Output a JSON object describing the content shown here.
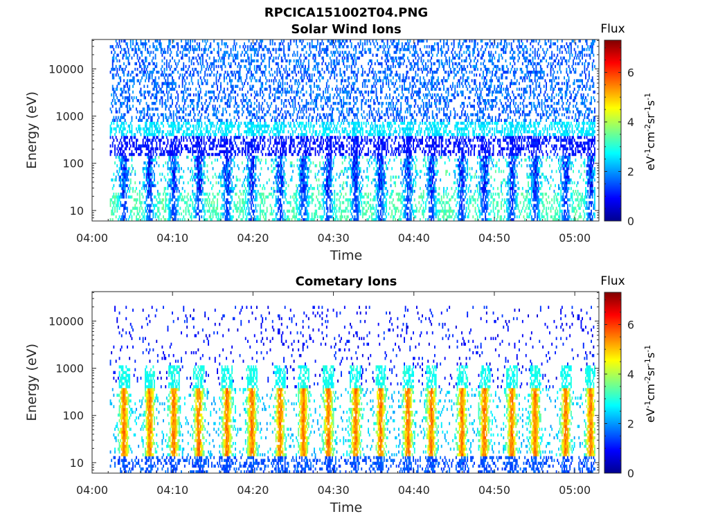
{
  "figure": {
    "filename_title": "RPCICA151002T04.PNG"
  },
  "chart_data": [
    {
      "type": "heatmap",
      "title": "Solar Wind Ions",
      "xlabel": "Time",
      "ylabel": "Energy (eV)",
      "x_ticks": [
        "04:00",
        "04:10",
        "04:20",
        "04:30",
        "04:40",
        "04:50",
        "05:00"
      ],
      "x_tick_minutes": [
        0,
        10,
        20,
        30,
        40,
        50,
        60
      ],
      "xlim_minutes": [
        0,
        63
      ],
      "data_x_range_minutes": [
        2.2,
        62.5
      ],
      "y_scale": "log",
      "ylim_eV": [
        6,
        42000
      ],
      "y_ticks": [
        10,
        100,
        1000,
        10000
      ],
      "y_tick_labels": [
        "10",
        "100",
        "1000",
        "10000"
      ],
      "colorbar": {
        "label": "Flux",
        "units": "eV-1cm-2sr-1s-1",
        "range": [
          0,
          7.3
        ],
        "ticks": [
          0,
          2,
          4,
          6
        ],
        "tick_labels": [
          "0",
          "2",
          "4",
          "6"
        ],
        "colormap": "jet"
      },
      "bursts_minutes": [
        3.9,
        7.1,
        10.1,
        13.2,
        16.7,
        19.8,
        23.3,
        26.2,
        29.3,
        32.7,
        35.8,
        39.2,
        42.1,
        45.9,
        48.7,
        52.1,
        55.0,
        58.8,
        61.9
      ],
      "bands": [
        {
          "energy_range_eV": [
            6,
            25
          ],
          "flux_level": 3.3
        },
        {
          "energy_range_eV": [
            25,
            400
          ],
          "flux_level": 1.3
        },
        {
          "energy_range_eV": [
            150,
            800
          ],
          "flux_level": 2.8
        },
        {
          "energy_range_eV": [
            800,
            40000
          ],
          "flux_level": 1.2
        }
      ],
      "grid": false,
      "legend": "colorbar-right"
    },
    {
      "type": "heatmap",
      "title": "Cometary Ions",
      "xlabel": "Time",
      "ylabel": "Energy (eV)",
      "x_ticks": [
        "04:00",
        "04:10",
        "04:20",
        "04:30",
        "04:40",
        "04:50",
        "05:00"
      ],
      "x_tick_minutes": [
        0,
        10,
        20,
        30,
        40,
        50,
        60
      ],
      "xlim_minutes": [
        0,
        63
      ],
      "data_x_range_minutes": [
        2.2,
        62.5
      ],
      "y_scale": "log",
      "ylim_eV": [
        6,
        42000
      ],
      "y_ticks": [
        10,
        100,
        1000,
        10000
      ],
      "y_tick_labels": [
        "10",
        "100",
        "1000",
        "10000"
      ],
      "colorbar": {
        "label": "Flux",
        "units": "eV-1cm-2sr-1s-1",
        "range": [
          0,
          7.3
        ],
        "ticks": [
          0,
          2,
          4,
          6
        ],
        "tick_labels": [
          "0",
          "2",
          "4",
          "6"
        ],
        "colormap": "jet"
      },
      "bursts_minutes": [
        3.9,
        7.1,
        10.1,
        13.2,
        16.7,
        19.8,
        23.3,
        26.2,
        29.3,
        32.7,
        35.8,
        39.2,
        42.1,
        45.9,
        48.7,
        52.1,
        55.0,
        58.8,
        61.9
      ],
      "bands": [
        {
          "energy_range_eV": [
            6,
            14
          ],
          "flux_level": 1.2
        },
        {
          "energy_range_eV": [
            14,
            400
          ],
          "flux_level": 4.6
        },
        {
          "energy_range_eV": [
            400,
            20000
          ],
          "flux_level": 0.6
        }
      ],
      "grid": false,
      "legend": "colorbar-right"
    }
  ]
}
